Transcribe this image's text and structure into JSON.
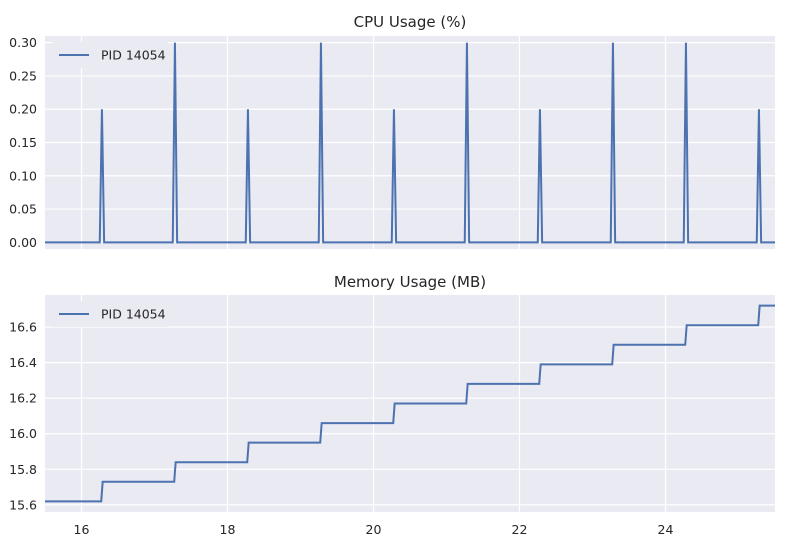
{
  "colors": {
    "series": "#4C72B0",
    "panel_bg": "#EAEAF2",
    "grid": "#FFFFFF"
  },
  "chart_data": [
    {
      "type": "line",
      "title": "CPU Usage (%)",
      "xlabel": "",
      "ylabel": "",
      "xlim": [
        15.5,
        25.5
      ],
      "ylim": [
        -0.01,
        0.31
      ],
      "yticks": [
        0.0,
        0.05,
        0.1,
        0.15,
        0.2,
        0.25,
        0.3
      ],
      "ytick_labels": [
        "0.00",
        "0.05",
        "0.10",
        "0.15",
        "0.20",
        "0.25",
        "0.30"
      ],
      "xticks": [
        16,
        18,
        20,
        22,
        24
      ],
      "xtick_labels": [],
      "grid": true,
      "legend": "upper-left",
      "series": [
        {
          "name": "PID 14054",
          "x": [
            15.5,
            16.25,
            16.28,
            16.31,
            17.25,
            17.28,
            17.31,
            18.25,
            18.28,
            18.31,
            19.25,
            19.28,
            19.31,
            20.25,
            20.28,
            20.31,
            21.25,
            21.28,
            21.31,
            22.25,
            22.28,
            22.31,
            23.25,
            23.28,
            23.31,
            24.25,
            24.28,
            24.31,
            25.25,
            25.28,
            25.31,
            25.5
          ],
          "y": [
            0.0,
            0.0,
            0.2,
            0.0,
            0.0,
            0.3,
            0.0,
            0.0,
            0.2,
            0.0,
            0.0,
            0.3,
            0.0,
            0.0,
            0.2,
            0.0,
            0.0,
            0.3,
            0.0,
            0.0,
            0.2,
            0.0,
            0.0,
            0.3,
            0.0,
            0.0,
            0.3,
            0.0,
            0.0,
            0.2,
            0.0,
            0.0
          ]
        }
      ]
    },
    {
      "type": "line",
      "title": "Memory Usage (MB)",
      "xlabel": "",
      "ylabel": "",
      "xlim": [
        15.5,
        25.5
      ],
      "ylim": [
        15.56,
        16.78
      ],
      "yticks": [
        15.6,
        15.8,
        16.0,
        16.2,
        16.4,
        16.6
      ],
      "ytick_labels": [
        "15.6",
        "15.8",
        "16.0",
        "16.2",
        "16.4",
        "16.6"
      ],
      "xticks": [
        16,
        18,
        20,
        22,
        24
      ],
      "xtick_labels": [
        "16",
        "18",
        "20",
        "22",
        "24"
      ],
      "grid": true,
      "legend": "upper-left",
      "series": [
        {
          "name": "PID 14054",
          "x": [
            15.5,
            16.27,
            16.29,
            17.27,
            17.29,
            18.27,
            18.29,
            19.27,
            19.29,
            20.27,
            20.29,
            21.27,
            21.29,
            22.27,
            22.29,
            23.27,
            23.29,
            24.27,
            24.29,
            25.27,
            25.29,
            25.5
          ],
          "y": [
            15.62,
            15.62,
            15.73,
            15.73,
            15.84,
            15.84,
            15.95,
            15.95,
            16.06,
            16.06,
            16.17,
            16.17,
            16.28,
            16.28,
            16.39,
            16.39,
            16.5,
            16.5,
            16.61,
            16.61,
            16.72,
            16.72
          ]
        }
      ]
    }
  ]
}
